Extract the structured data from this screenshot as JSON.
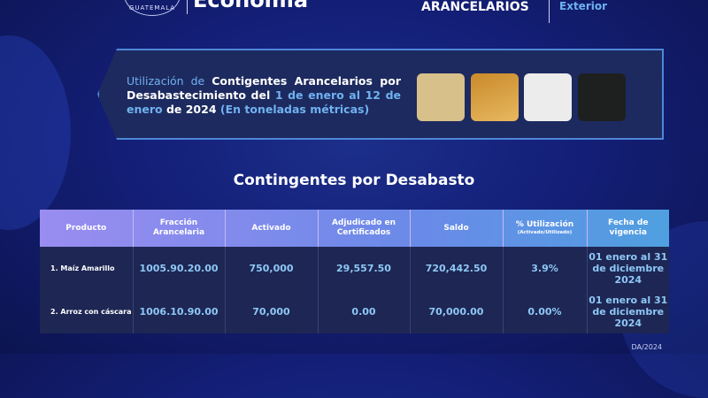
{
  "header": {
    "seal_text": "GUATEMALA",
    "ministry": "Economía",
    "program": "ARANCELARIOS",
    "office": "Exterior"
  },
  "banner": {
    "p1": "Utilización de ",
    "p2": "Contigentes Arancelarios por Desabastecimiento del ",
    "p3": "1 de enero al 12 de enero",
    "p4": " de 2024 ",
    "p5": "(En toneladas métricas)",
    "images": [
      {
        "name": "corn-grits",
        "color": "#d8c08a"
      },
      {
        "name": "cornmeal",
        "color": "#e0b05a"
      },
      {
        "name": "rice",
        "color": "#ececec"
      },
      {
        "name": "black-beans",
        "color": "#1e2020"
      }
    ]
  },
  "title": "Contingentes por Desabasto",
  "table": {
    "headers": [
      "Producto",
      "Fracción Arancelaria",
      "Activado",
      "Adjudicado en Certificados",
      "Saldo",
      "% Utilización",
      "Fecha de vigencia"
    ],
    "header_sub": "(Activado/Utilizado)",
    "rows": [
      [
        "1. Maíz Amarillo",
        "1005.90.20.00",
        "750,000",
        "29,557.50",
        "720,442.50",
        "3.9%",
        "01 enero al 31 de diciembre 2024"
      ],
      [
        "2. Arroz con cáscara",
        "1006.10.90.00",
        "70,000",
        "0.00",
        "70,000.00",
        "0.00%",
        "01 enero al 31 de diciembre 2024"
      ]
    ]
  },
  "footer": "DA/2024"
}
